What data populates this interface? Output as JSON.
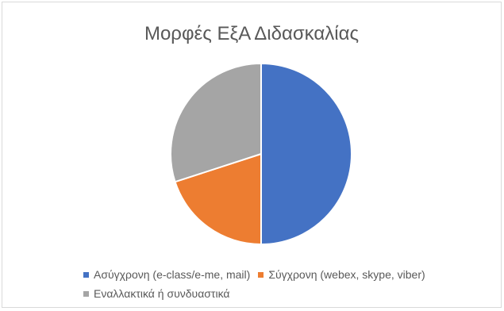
{
  "chart_data": {
    "type": "pie",
    "title": "Μορφές ΕξΑ Διδασκαλίας",
    "categories": [
      "Ασύγχρονη (e-class/e-me, mail)",
      "Σύγχρονη (webex, skype, viber)",
      "Εναλλακτικά ή συνδυαστικά"
    ],
    "values": [
      50,
      20,
      30
    ],
    "colors": [
      "#4472C4",
      "#ED7D31",
      "#A5A5A5"
    ],
    "legend_position": "bottom",
    "start_angle_deg": 0,
    "direction": "clockwise"
  }
}
